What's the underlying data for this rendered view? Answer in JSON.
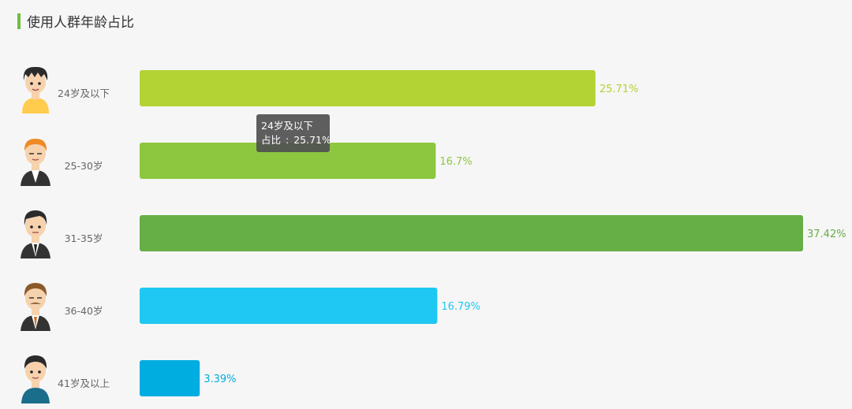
{
  "header": {
    "title": "使用人群年龄占比"
  },
  "tooltip": {
    "category": "24岁及以下",
    "label": "占比",
    "value": "25.71%"
  },
  "avatars": [
    "boy-yellow-shirt-icon",
    "orange-hair-suit-icon",
    "businessman-suit-icon",
    "mustache-man-suit-icon",
    "man-blue-shirt-icon"
  ],
  "chart_data": {
    "type": "bar",
    "orientation": "horizontal",
    "title": "使用人群年龄占比",
    "categories": [
      "24岁及以下",
      "25-30岁",
      "31-35岁",
      "36-40岁",
      "41岁及以上"
    ],
    "values": [
      25.71,
      16.7,
      37.42,
      16.79,
      3.39
    ],
    "value_labels": [
      "25.71%",
      "16.7%",
      "37.42%",
      "16.79%",
      "3.39%"
    ],
    "colors": [
      "#b3d334",
      "#8dc63f",
      "#66ae46",
      "#1fc8f2",
      "#00ade0"
    ],
    "xlim": [
      0,
      37.42
    ],
    "grid": false,
    "legend": false
  }
}
